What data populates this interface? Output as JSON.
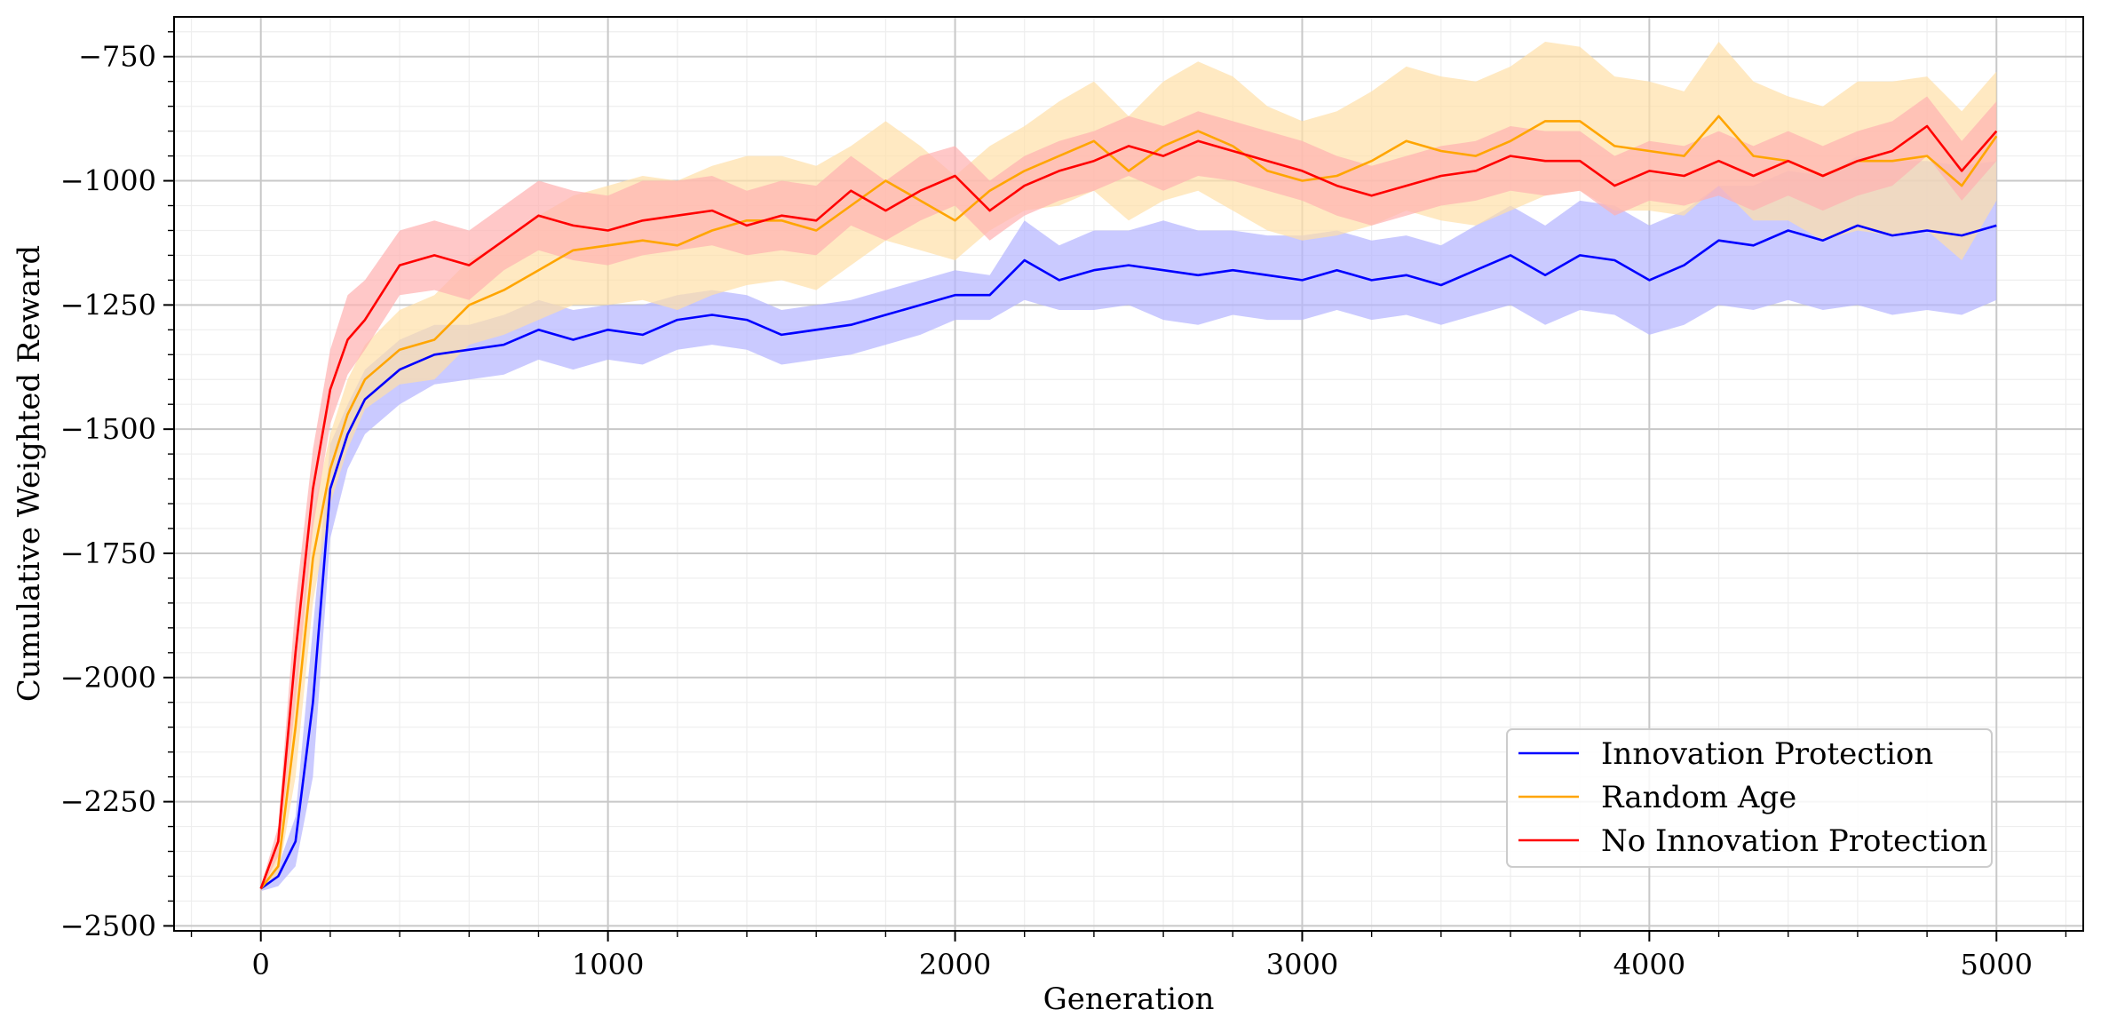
{
  "chart_data": {
    "type": "line",
    "xlabel": "Generation",
    "ylabel": "Cumulative Weighted Reward",
    "xlim": [
      -250,
      5250
    ],
    "ylim": [
      -2510,
      -670
    ],
    "x_ticks": [
      0,
      1000,
      2000,
      3000,
      4000,
      5000
    ],
    "y_ticks": [
      -2500,
      -2250,
      -2000,
      -1750,
      -1500,
      -1250,
      -1000,
      -750
    ],
    "x_tick_labels": [
      "0",
      "1000",
      "2000",
      "3000",
      "4000",
      "5000"
    ],
    "y_tick_labels": [
      "−2500",
      "−2250",
      "−2000",
      "−1750",
      "−1500",
      "−1250",
      "−1000",
      "−750"
    ],
    "grid": true,
    "legend_position": "lower-right",
    "x": [
      0,
      50,
      100,
      150,
      200,
      250,
      300,
      400,
      500,
      600,
      700,
      800,
      900,
      1000,
      1100,
      1200,
      1300,
      1400,
      1500,
      1600,
      1700,
      1800,
      1900,
      2000,
      2100,
      2200,
      2300,
      2400,
      2500,
      2600,
      2700,
      2800,
      2900,
      3000,
      3100,
      3200,
      3300,
      3400,
      3500,
      3600,
      3700,
      3800,
      3900,
      4000,
      4100,
      4200,
      4300,
      4400,
      4500,
      4600,
      4700,
      4800,
      4900,
      5000
    ],
    "series": [
      {
        "name": "Innovation Protection",
        "color": "#0000ff",
        "band_color": "#b3b3ff",
        "values": [
          -2425,
          -2400,
          -2330,
          -2050,
          -1620,
          -1510,
          -1440,
          -1380,
          -1350,
          -1340,
          -1330,
          -1300,
          -1320,
          -1300,
          -1310,
          -1280,
          -1270,
          -1280,
          -1310,
          -1300,
          -1290,
          -1270,
          -1250,
          -1230,
          -1230,
          -1160,
          -1200,
          -1180,
          -1170,
          -1180,
          -1190,
          -1180,
          -1190,
          -1200,
          -1180,
          -1200,
          -1190,
          -1210,
          -1180,
          -1150,
          -1190,
          -1150,
          -1160,
          -1200,
          -1170,
          -1120,
          -1130,
          -1100,
          -1120,
          -1090,
          -1110,
          -1100,
          -1110,
          -1090
        ],
        "lower": [
          -2430,
          -2420,
          -2380,
          -2200,
          -1720,
          -1580,
          -1510,
          -1450,
          -1410,
          -1400,
          -1390,
          -1360,
          -1380,
          -1360,
          -1370,
          -1340,
          -1330,
          -1340,
          -1370,
          -1360,
          -1350,
          -1330,
          -1310,
          -1280,
          -1280,
          -1240,
          -1260,
          -1260,
          -1250,
          -1280,
          -1290,
          -1270,
          -1280,
          -1280,
          -1260,
          -1280,
          -1270,
          -1290,
          -1270,
          -1250,
          -1290,
          -1260,
          -1270,
          -1310,
          -1290,
          -1250,
          -1260,
          -1240,
          -1260,
          -1250,
          -1270,
          -1260,
          -1270,
          -1240
        ],
        "upper": [
          -2420,
          -2380,
          -2280,
          -1900,
          -1530,
          -1450,
          -1380,
          -1320,
          -1290,
          -1290,
          -1270,
          -1240,
          -1260,
          -1250,
          -1250,
          -1230,
          -1220,
          -1230,
          -1260,
          -1250,
          -1240,
          -1220,
          -1200,
          -1180,
          -1190,
          -1080,
          -1130,
          -1100,
          -1100,
          -1080,
          -1100,
          -1100,
          -1110,
          -1110,
          -1100,
          -1120,
          -1110,
          -1130,
          -1090,
          -1050,
          -1090,
          -1040,
          -1050,
          -1090,
          -1060,
          -1010,
          -1010,
          -980,
          -990,
          -950,
          -960,
          -960,
          -970,
          -960
        ]
      },
      {
        "name": "Random Age",
        "color": "#ffa500",
        "band_color": "#ffdfa8",
        "values": [
          -2425,
          -2380,
          -2100,
          -1760,
          -1580,
          -1470,
          -1400,
          -1340,
          -1320,
          -1250,
          -1220,
          -1180,
          -1140,
          -1130,
          -1120,
          -1130,
          -1100,
          -1080,
          -1080,
          -1100,
          -1050,
          -1000,
          -1040,
          -1080,
          -1020,
          -980,
          -950,
          -920,
          -980,
          -930,
          -900,
          -930,
          -980,
          -1000,
          -990,
          -960,
          -920,
          -940,
          -950,
          -920,
          -880,
          -880,
          -930,
          -940,
          -950,
          -870,
          -950,
          -960,
          -990,
          -960,
          -960,
          -950,
          -1010,
          -910
        ],
        "lower": [
          -2430,
          -2400,
          -2200,
          -1850,
          -1650,
          -1540,
          -1460,
          -1410,
          -1400,
          -1330,
          -1310,
          -1280,
          -1250,
          -1250,
          -1240,
          -1260,
          -1230,
          -1210,
          -1200,
          -1220,
          -1170,
          -1120,
          -1140,
          -1160,
          -1100,
          -1060,
          -1050,
          -1020,
          -1080,
          -1040,
          -1020,
          -1060,
          -1100,
          -1120,
          -1110,
          -1090,
          -1060,
          -1080,
          -1090,
          -1060,
          -1030,
          -1020,
          -1060,
          -1060,
          -1070,
          -1010,
          -1080,
          -1080,
          -1120,
          -1100,
          -1110,
          -1100,
          -1160,
          -1040
        ],
        "upper": [
          -2420,
          -2340,
          -2000,
          -1670,
          -1510,
          -1400,
          -1330,
          -1260,
          -1230,
          -1160,
          -1120,
          -1070,
          -1030,
          -1010,
          -990,
          -1000,
          -970,
          -950,
          -950,
          -970,
          -930,
          -880,
          -930,
          -990,
          -930,
          -890,
          -840,
          -800,
          -870,
          -800,
          -760,
          -790,
          -850,
          -880,
          -860,
          -820,
          -770,
          -790,
          -800,
          -770,
          -720,
          -730,
          -790,
          -800,
          -820,
          -720,
          -800,
          -830,
          -850,
          -800,
          -800,
          -790,
          -860,
          -780
        ]
      },
      {
        "name": "No Innovation Protection",
        "color": "#ff0000",
        "band_color": "#ffb0b0",
        "values": [
          -2425,
          -2330,
          -1950,
          -1620,
          -1420,
          -1320,
          -1280,
          -1170,
          -1150,
          -1170,
          -1120,
          -1070,
          -1090,
          -1100,
          -1080,
          -1070,
          -1060,
          -1090,
          -1070,
          -1080,
          -1020,
          -1060,
          -1020,
          -990,
          -1060,
          -1010,
          -980,
          -960,
          -930,
          -950,
          -920,
          -940,
          -960,
          -980,
          -1010,
          -1030,
          -1010,
          -990,
          -980,
          -950,
          -960,
          -960,
          -1010,
          -980,
          -990,
          -960,
          -990,
          -960,
          -990,
          -960,
          -940,
          -890,
          -980,
          -900
        ],
        "lower": [
          -2430,
          -2360,
          -2050,
          -1700,
          -1490,
          -1390,
          -1340,
          -1230,
          -1220,
          -1240,
          -1180,
          -1140,
          -1160,
          -1170,
          -1150,
          -1140,
          -1130,
          -1150,
          -1140,
          -1150,
          -1090,
          -1120,
          -1080,
          -1050,
          -1120,
          -1070,
          -1040,
          -1020,
          -990,
          -1020,
          -990,
          -1000,
          -1020,
          -1040,
          -1070,
          -1090,
          -1070,
          -1050,
          -1040,
          -1020,
          -1030,
          -1020,
          -1070,
          -1040,
          -1050,
          -1030,
          -1060,
          -1030,
          -1060,
          -1030,
          -1010,
          -950,
          -1040,
          -960
        ],
        "upper": [
          -2420,
          -2300,
          -1850,
          -1540,
          -1340,
          -1230,
          -1200,
          -1100,
          -1080,
          -1100,
          -1050,
          -1000,
          -1020,
          -1030,
          -1000,
          -1000,
          -990,
          -1020,
          -1000,
          -1010,
          -950,
          -1000,
          -950,
          -930,
          -1000,
          -950,
          -920,
          -900,
          -870,
          -890,
          -860,
          -880,
          -900,
          -920,
          -950,
          -970,
          -950,
          -930,
          -920,
          -890,
          -900,
          -900,
          -950,
          -920,
          -930,
          -900,
          -930,
          -900,
          -930,
          -900,
          -880,
          -830,
          -920,
          -840
        ]
      }
    ]
  }
}
